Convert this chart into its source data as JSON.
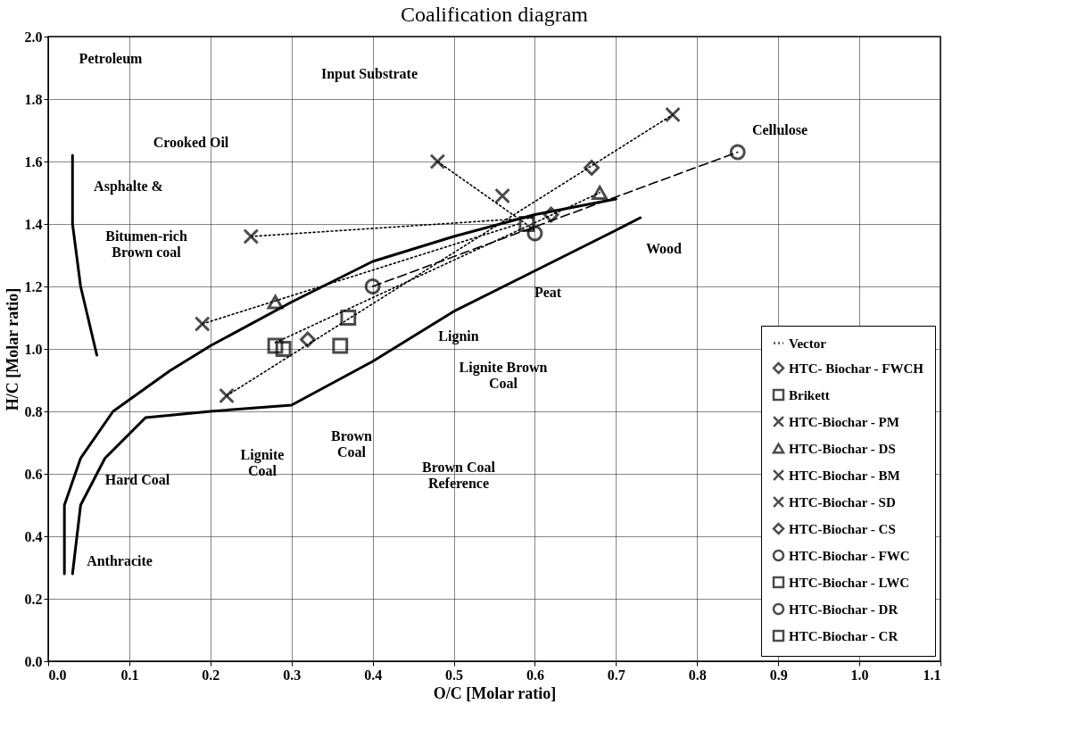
{
  "chart_data": {
    "type": "scatter",
    "title": "Coalification diagram",
    "xlabel": "O/C [Molar ratio]",
    "ylabel": "H/C [Molar ratio]",
    "xlim": [
      0,
      1.1
    ],
    "ylim": [
      0,
      2
    ],
    "xticks": [
      {
        "value": 0,
        "label": "0.0"
      },
      {
        "value": 0.1,
        "label": "0.1"
      },
      {
        "value": 0.2,
        "label": "0.2"
      },
      {
        "value": 0.3,
        "label": "0.3"
      },
      {
        "value": 0.4,
        "label": "0.4"
      },
      {
        "value": 0.5,
        "label": "0.5"
      },
      {
        "value": 0.6,
        "label": "0.6"
      },
      {
        "value": 0.7,
        "label": "0.7"
      },
      {
        "value": 0.8,
        "label": "0.8"
      },
      {
        "value": 0.9,
        "label": "0.9"
      },
      {
        "value": 1,
        "label": "1.0"
      },
      {
        "value": 1.1,
        "label": "1.1"
      }
    ],
    "yticks": [
      {
        "value": 0,
        "label": "0.0"
      },
      {
        "value": 0.2,
        "label": "0.2"
      },
      {
        "value": 0.4,
        "label": "0.4"
      },
      {
        "value": 0.6,
        "label": "0.6"
      },
      {
        "value": 0.8,
        "label": "0.8"
      },
      {
        "value": 1,
        "label": "1.0"
      },
      {
        "value": 1.2,
        "label": "1.2"
      },
      {
        "value": 1.4,
        "label": "1.4"
      },
      {
        "value": 1.6,
        "label": "1.6"
      },
      {
        "value": 1.8,
        "label": "1.8"
      },
      {
        "value": 2,
        "label": "2.0"
      }
    ],
    "grid": true,
    "legend": "bottom right",
    "series": [
      {
        "type": "line",
        "line_style": "solid",
        "color": "#000000",
        "x": [
          0.02,
          0.02,
          0.04,
          0.08,
          0.15,
          0.2,
          0.3,
          0.4,
          0.5,
          0.6,
          0.7
        ],
        "values": [
          0.28,
          0.5,
          0.65,
          0.8,
          0.93,
          1.01,
          1.15,
          1.28,
          1.36,
          1.43,
          1.48
        ]
      },
      {
        "type": "line",
        "line_style": "solid",
        "color": "#000000",
        "x": [
          0.03,
          0.04,
          0.07,
          0.12,
          0.2,
          0.3,
          0.4,
          0.5,
          0.6,
          0.7,
          0.73
        ],
        "values": [
          0.28,
          0.5,
          0.65,
          0.78,
          0.8,
          0.82,
          0.96,
          1.12,
          1.25,
          1.38,
          1.42
        ]
      },
      {
        "type": "line",
        "line_style": "solid",
        "color": "#000000",
        "x": [
          0.03,
          0.03,
          0.04,
          0.06
        ],
        "values": [
          1.62,
          1.4,
          1.2,
          0.98
        ]
      },
      {
        "name": "Vector",
        "type": "line",
        "line_style": "dotted",
        "color": "#000000",
        "x": [
          0.22,
          0.77
        ],
        "values": [
          0.85,
          1.75
        ]
      },
      {
        "type": "line",
        "line_style": "dotted",
        "color": "#000000",
        "x": [
          0.25,
          0.6
        ],
        "values": [
          1.36,
          1.42
        ]
      },
      {
        "type": "line",
        "line_style": "dotted",
        "color": "#000000",
        "x": [
          0.19,
          0.58
        ],
        "values": [
          1.08,
          1.4
        ]
      },
      {
        "type": "line",
        "line_style": "dotted",
        "color": "#000000",
        "x": [
          0.28,
          0.68
        ],
        "values": [
          1.02,
          1.5
        ]
      },
      {
        "type": "line",
        "line_style": "dotted",
        "color": "#000000",
        "x": [
          0.48,
          0.6
        ],
        "values": [
          1.6,
          1.38
        ]
      },
      {
        "type": "line",
        "line_style": "dashed",
        "color": "#000000",
        "x": [
          0.4,
          0.85
        ],
        "values": [
          1.2,
          1.63
        ]
      },
      {
        "name": "HTC- Biochar - FWCH",
        "marker": "diamond",
        "color": "#000000",
        "x": [
          0.62
        ],
        "values": [
          1.43
        ]
      },
      {
        "name": "Brikett",
        "marker": "square",
        "color": "#000000",
        "x": [
          0.28,
          0.36
        ],
        "values": [
          1.01,
          1.01
        ]
      },
      {
        "name": "HTC-Biochar - PM",
        "marker": "cross",
        "color": "#000000",
        "x": [
          0.48,
          0.56
        ],
        "values": [
          1.6,
          1.49
        ]
      },
      {
        "name": "HTC-Biochar - DS",
        "marker": "triangle",
        "color": "#000000",
        "x": [
          0.28,
          0.68
        ],
        "values": [
          1.15,
          1.5
        ]
      },
      {
        "name": "HTC-Biochar - BM",
        "marker": "cross",
        "color": "#000000",
        "x": [
          0.25,
          0.19
        ],
        "values": [
          1.36,
          1.08
        ]
      },
      {
        "name": "HTC-Biochar - SD",
        "marker": "cross",
        "color": "#000000",
        "x": [
          0.77,
          0.22
        ],
        "values": [
          1.75,
          0.85
        ]
      },
      {
        "name": "HTC-Biochar - CS",
        "marker": "diamond",
        "color": "#000000",
        "x": [
          0.67,
          0.32
        ],
        "values": [
          1.58,
          1.03
        ]
      },
      {
        "name": "HTC-Biochar - FWC",
        "marker": "circle",
        "color": "#000000",
        "x": [
          0.85,
          0.4
        ],
        "values": [
          1.63,
          1.2
        ]
      },
      {
        "name": "HTC-Biochar - LWC",
        "marker": "square",
        "color": "#000000",
        "x": [
          0.59,
          0.37
        ],
        "values": [
          1.4,
          1.1
        ]
      },
      {
        "name": "HTC-Biochar - DR",
        "marker": "circle",
        "color": "#000000",
        "x": [
          0.6
        ],
        "values": [
          1.37
        ]
      },
      {
        "name": "HTC-Biochar - CR",
        "marker": "square",
        "color": "#000000",
        "x": [
          0.29
        ],
        "values": [
          1.0
        ]
      }
    ],
    "annotations": [
      "Input Substrate",
      "Petroleum",
      "Crooked Oil",
      "Asphalte &",
      "Bitumen-rich\nBrown coal",
      "Cellulose",
      "Wood",
      "Peat",
      "Lignin",
      "Lignite Brown\nCoal",
      "Brown\nCoal",
      "Lignite\nCoal",
      "Hard Coal",
      "Anthracite",
      "Brown Coal\nReference"
    ]
  }
}
